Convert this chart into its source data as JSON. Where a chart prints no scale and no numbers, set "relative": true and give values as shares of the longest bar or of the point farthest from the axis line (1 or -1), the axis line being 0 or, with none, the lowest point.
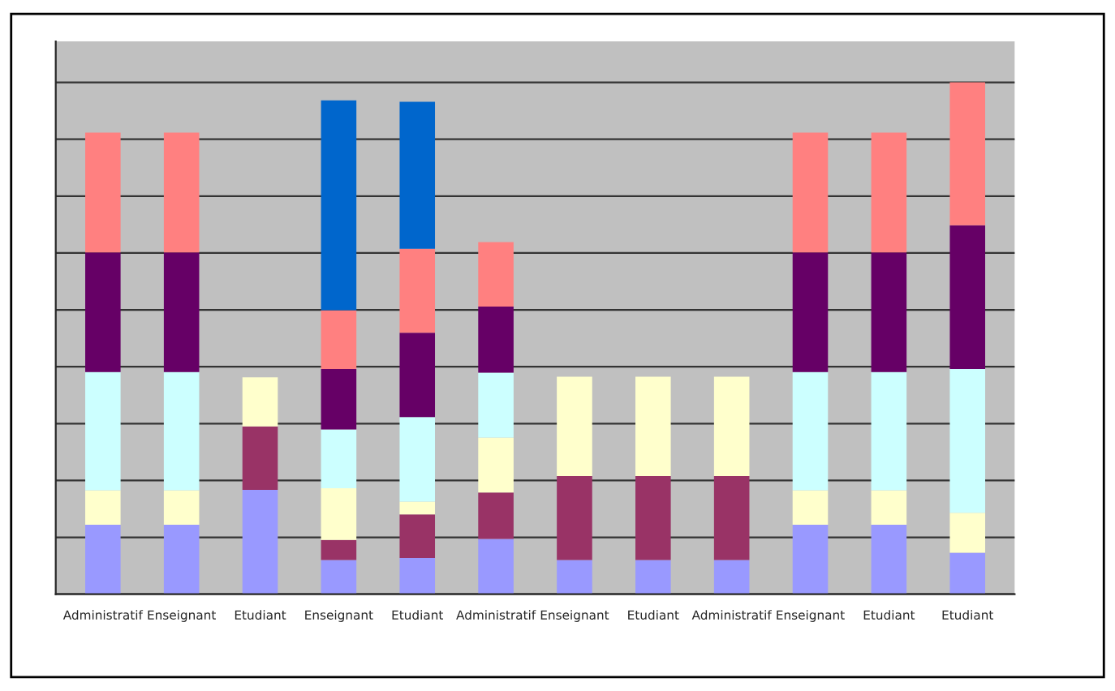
{
  "chart_data": {
    "type": "bar",
    "stacked": true,
    "relative": true,
    "grid": "y",
    "categories": [
      "Administratif",
      "Enseignant",
      "Etudiant",
      "Enseignant",
      "Etudiant",
      "Administratif",
      "Enseignant",
      "Etudiant",
      "Administratif",
      "Enseignant",
      "Etudiant",
      "Etudiant"
    ],
    "series": [
      {
        "color": "#9999ff",
        "values": [
          0.136,
          0.136,
          0.204,
          0.067,
          0.071,
          0.108,
          0.067,
          0.067,
          0.067,
          0.136,
          0.136,
          0.081
        ]
      },
      {
        "color": "#993366",
        "values": [
          0,
          0,
          0.124,
          0.039,
          0.085,
          0.091,
          0.164,
          0.164,
          0.164,
          0,
          0,
          0
        ]
      },
      {
        "color": "#ffffcc",
        "values": [
          0.067,
          0.067,
          0.096,
          0.101,
          0.025,
          0.107,
          0.194,
          0.194,
          0.194,
          0.067,
          0.067,
          0.078
        ]
      },
      {
        "color": "#ccffff",
        "values": [
          0.231,
          0.231,
          0,
          0.115,
          0.165,
          0.127,
          0,
          0,
          0,
          0.231,
          0.231,
          0.281
        ]
      },
      {
        "color": "#660066",
        "values": [
          0.234,
          0.234,
          0,
          0.118,
          0.165,
          0.129,
          0,
          0,
          0,
          0.234,
          0.234,
          0.281
        ]
      },
      {
        "color": "#ff8080",
        "values": [
          0.234,
          0.234,
          0,
          0.115,
          0.164,
          0.126,
          0,
          0,
          0,
          0.234,
          0.234,
          0.279
        ]
      },
      {
        "color": "#0066cc",
        "values": [
          0,
          0,
          0,
          0.41,
          0.287,
          0,
          0,
          0,
          0,
          0,
          0,
          0
        ]
      }
    ]
  }
}
